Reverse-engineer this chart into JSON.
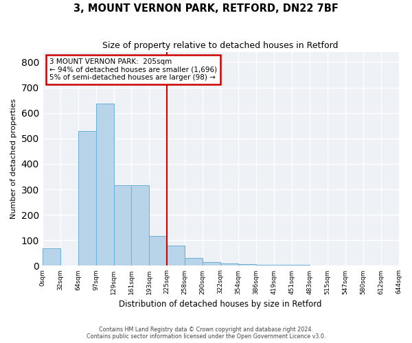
{
  "title": "3, MOUNT VERNON PARK, RETFORD, DN22 7BF",
  "subtitle": "Size of property relative to detached houses in Retford",
  "xlabel": "Distribution of detached houses by size in Retford",
  "ylabel": "Number of detached properties",
  "bar_values": [
    68,
    0,
    530,
    638,
    315,
    315,
    118,
    78,
    30,
    15,
    10,
    7,
    5,
    5,
    3,
    0,
    0,
    0,
    0,
    0
  ],
  "bin_labels": [
    "0sqm",
    "32sqm",
    "64sqm",
    "97sqm",
    "129sqm",
    "161sqm",
    "193sqm",
    "225sqm",
    "258sqm",
    "290sqm",
    "322sqm",
    "354sqm",
    "386sqm",
    "419sqm",
    "451sqm",
    "483sqm",
    "515sqm",
    "547sqm",
    "580sqm",
    "612sqm",
    "644sqm"
  ],
  "bar_color": "#b8d4e8",
  "bar_edge_color": "#6aaed6",
  "property_label": "3 MOUNT VERNON PARK:  205sqm",
  "annotation_line1": "← 94% of detached houses are smaller (1,696)",
  "annotation_line2": "5% of semi-detached houses are larger (98) →",
  "vline_color": "#cc0000",
  "vline_position": 6.5,
  "annotation_box_color": "#cc0000",
  "ylim": [
    0,
    840
  ],
  "yticks": [
    0,
    100,
    200,
    300,
    400,
    500,
    600,
    700,
    800
  ],
  "background_color": "#eef2f7",
  "footer_line1": "Contains HM Land Registry data © Crown copyright and database right 2024.",
  "footer_line2": "Contains public sector information licensed under the Open Government Licence v3.0."
}
